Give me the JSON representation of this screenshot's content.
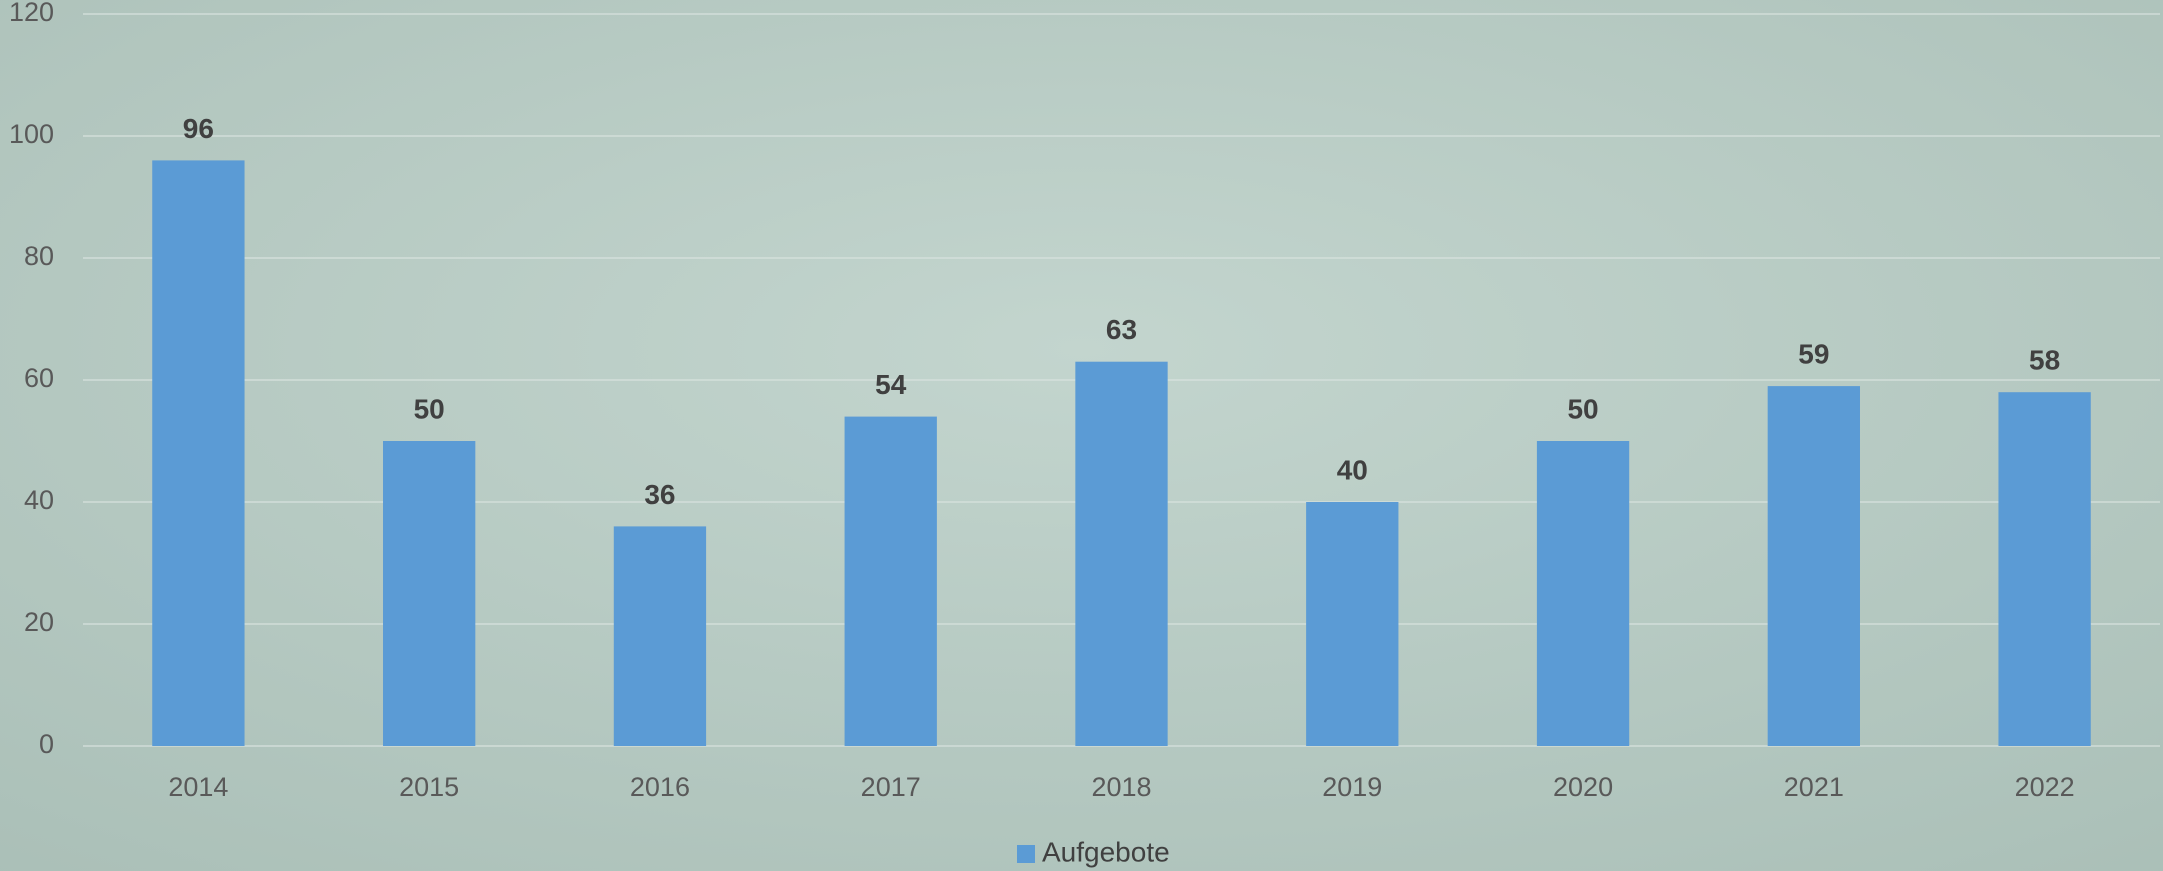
{
  "chart_data": {
    "type": "bar",
    "categories": [
      "2014",
      "2015",
      "2016",
      "2017",
      "2018",
      "2019",
      "2020",
      "2021",
      "2022"
    ],
    "series": [
      {
        "name": "Aufgebote",
        "color": "#5b9bd5",
        "values": [
          96,
          50,
          36,
          54,
          63,
          40,
          50,
          59,
          58
        ]
      }
    ],
    "ylim": [
      0,
      120
    ],
    "yticks": [
      0,
      20,
      40,
      60,
      80,
      100,
      120
    ],
    "grid": true,
    "legend": "bottom"
  }
}
